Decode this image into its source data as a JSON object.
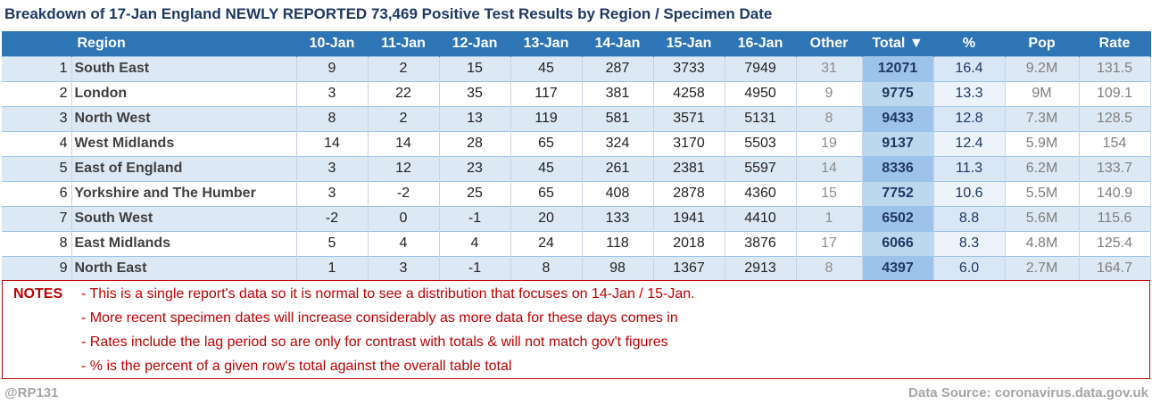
{
  "title": "Breakdown of 17-Jan England NEWLY REPORTED 73,469 Positive Test Results by Region / Specimen Date",
  "columns": [
    "Region",
    "10-Jan",
    "11-Jan",
    "12-Jan",
    "13-Jan",
    "14-Jan",
    "15-Jan",
    "16-Jan",
    "Other",
    "Total ▼",
    "%",
    "Pop",
    "Rate"
  ],
  "rows": [
    {
      "rank": "1",
      "region": "South East",
      "d10": "9",
      "d11": "2",
      "d12": "15",
      "d13": "45",
      "d14": "287",
      "d15": "3733",
      "d16": "7949",
      "other": "31",
      "total": "12071",
      "pct": "16.4",
      "pop": "9.2M",
      "rate": "131.5"
    },
    {
      "rank": "2",
      "region": "London",
      "d10": "3",
      "d11": "22",
      "d12": "35",
      "d13": "117",
      "d14": "381",
      "d15": "4258",
      "d16": "4950",
      "other": "9",
      "total": "9775",
      "pct": "13.3",
      "pop": "9M",
      "rate": "109.1"
    },
    {
      "rank": "3",
      "region": "North West",
      "d10": "8",
      "d11": "2",
      "d12": "13",
      "d13": "119",
      "d14": "581",
      "d15": "3571",
      "d16": "5131",
      "other": "8",
      "total": "9433",
      "pct": "12.8",
      "pop": "7.3M",
      "rate": "128.5"
    },
    {
      "rank": "4",
      "region": "West Midlands",
      "d10": "14",
      "d11": "14",
      "d12": "28",
      "d13": "65",
      "d14": "324",
      "d15": "3170",
      "d16": "5503",
      "other": "19",
      "total": "9137",
      "pct": "12.4",
      "pop": "5.9M",
      "rate": "154"
    },
    {
      "rank": "5",
      "region": "East of England",
      "d10": "3",
      "d11": "12",
      "d12": "23",
      "d13": "45",
      "d14": "261",
      "d15": "2381",
      "d16": "5597",
      "other": "14",
      "total": "8336",
      "pct": "11.3",
      "pop": "6.2M",
      "rate": "133.7"
    },
    {
      "rank": "6",
      "region": "Yorkshire and The Humber",
      "d10": "3",
      "d11": "-2",
      "d12": "25",
      "d13": "65",
      "d14": "408",
      "d15": "2878",
      "d16": "4360",
      "other": "15",
      "total": "7752",
      "pct": "10.6",
      "pop": "5.5M",
      "rate": "140.9"
    },
    {
      "rank": "7",
      "region": "South West",
      "d10": "-2",
      "d11": "0",
      "d12": "-1",
      "d13": "20",
      "d14": "133",
      "d15": "1941",
      "d16": "4410",
      "other": "1",
      "total": "6502",
      "pct": "8.8",
      "pop": "5.6M",
      "rate": "115.6"
    },
    {
      "rank": "8",
      "region": "East Midlands",
      "d10": "5",
      "d11": "4",
      "d12": "4",
      "d13": "24",
      "d14": "118",
      "d15": "2018",
      "d16": "3876",
      "other": "17",
      "total": "6066",
      "pct": "8.3",
      "pop": "4.8M",
      "rate": "125.4"
    },
    {
      "rank": "9",
      "region": "North East",
      "d10": "1",
      "d11": "3",
      "d12": "-1",
      "d13": "8",
      "d14": "98",
      "d15": "1367",
      "d16": "2913",
      "other": "8",
      "total": "4397",
      "pct": "6.0",
      "pop": "2.7M",
      "rate": "164.7"
    }
  ],
  "notes": {
    "label": "NOTES",
    "lines": [
      "- This is a single report's data so it is normal to see a distribution that focuses on 14-Jan / 15-Jan.",
      "- More recent specimen dates will increase considerably as more data for these days comes in",
      "- Rates include the lag period so are only for contrast with totals & will not match gov't figures",
      "- % is the percent of a given row's total against the overall table total"
    ]
  },
  "footer": {
    "handle": "@RP131",
    "source": "Data Source: coronavirus.data.gov.uk"
  },
  "colors": {
    "header_bg": "#2e75b6",
    "title": "#1f3864",
    "notes": "#c00000",
    "band": "#dde8f5",
    "total_highlight": "#9ec3ea"
  }
}
